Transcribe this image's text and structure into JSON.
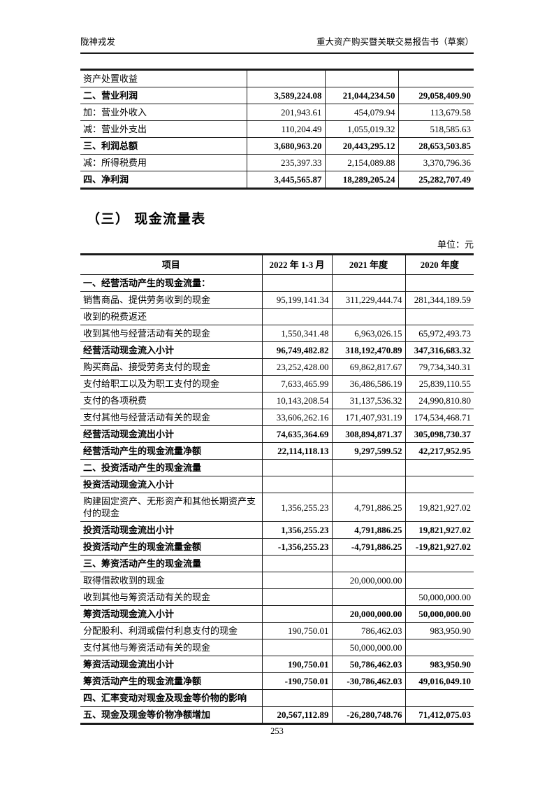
{
  "header": {
    "left": "陇神戎发",
    "right": "重大资产购买暨关联交易报告书（草案）"
  },
  "income_table": {
    "rows": [
      {
        "label": "资产处置收益",
        "v1": "",
        "v2": "",
        "v3": "",
        "bold": false
      },
      {
        "label": "二、营业利润",
        "v1": "3,589,224.08",
        "v2": "21,044,234.50",
        "v3": "29,058,409.90",
        "bold": true
      },
      {
        "label": "加：营业外收入",
        "v1": "201,943.61",
        "v2": "454,079.94",
        "v3": "113,679.58",
        "bold": false
      },
      {
        "label": "减：营业外支出",
        "v1": "110,204.49",
        "v2": "1,055,019.32",
        "v3": "518,585.63",
        "bold": false
      },
      {
        "label": "三、利润总额",
        "v1": "3,680,963.20",
        "v2": "20,443,295.12",
        "v3": "28,653,503.85",
        "bold": true
      },
      {
        "label": "减：所得税费用",
        "v1": "235,397.33",
        "v2": "2,154,089.88",
        "v3": "3,370,796.36",
        "bold": false
      },
      {
        "label": "四、净利润",
        "v1": "3,445,565.87",
        "v2": "18,289,205.24",
        "v3": "25,282,707.49",
        "bold": true
      }
    ]
  },
  "section": {
    "heading": "（三） 现金流量表",
    "unit": "单位：元"
  },
  "cashflow_table": {
    "headers": [
      "项目",
      "2022 年 1-3 月",
      "2021 年度",
      "2020 年度"
    ],
    "rows": [
      {
        "label": "一、经营活动产生的现金流量：",
        "v1": "",
        "v2": "",
        "v3": "",
        "bold": true
      },
      {
        "label": "销售商品、提供劳务收到的现金",
        "v1": "95,199,141.34",
        "v2": "311,229,444.74",
        "v3": "281,344,189.59",
        "bold": false
      },
      {
        "label": "收到的税费返还",
        "v1": "",
        "v2": "",
        "v3": "",
        "bold": false
      },
      {
        "label": "收到其他与经营活动有关的现金",
        "v1": "1,550,341.48",
        "v2": "6,963,026.15",
        "v3": "65,972,493.73",
        "bold": false
      },
      {
        "label": "经营活动现金流入小计",
        "v1": "96,749,482.82",
        "v2": "318,192,470.89",
        "v3": "347,316,683.32",
        "bold": true
      },
      {
        "label": "购买商品、接受劳务支付的现金",
        "v1": "23,252,428.00",
        "v2": "69,862,817.67",
        "v3": "79,734,340.31",
        "bold": false
      },
      {
        "label": "支付给职工以及为职工支付的现金",
        "v1": "7,633,465.99",
        "v2": "36,486,586.19",
        "v3": "25,839,110.55",
        "bold": false
      },
      {
        "label": "支付的各项税费",
        "v1": "10,143,208.54",
        "v2": "31,137,536.32",
        "v3": "24,990,810.80",
        "bold": false
      },
      {
        "label": "支付其他与经营活动有关的现金",
        "v1": "33,606,262.16",
        "v2": "171,407,931.19",
        "v3": "174,534,468.71",
        "bold": false
      },
      {
        "label": "经营活动现金流出小计",
        "v1": "74,635,364.69",
        "v2": "308,894,871.37",
        "v3": "305,098,730.37",
        "bold": true
      },
      {
        "label": "经营活动产生的现金流量净额",
        "v1": "22,114,118.13",
        "v2": "9,297,599.52",
        "v3": "42,217,952.95",
        "bold": true
      },
      {
        "label": "二、投资活动产生的现金流量",
        "v1": "",
        "v2": "",
        "v3": "",
        "bold": true
      },
      {
        "label": "投资活动现金流入小计",
        "v1": "",
        "v2": "",
        "v3": "",
        "bold": true
      },
      {
        "label": "购建固定资产、无形资产和其他长期资产支付的现金",
        "v1": "1,356,255.23",
        "v2": "4,791,886.25",
        "v3": "19,821,927.02",
        "bold": false
      },
      {
        "label": "投资活动现金流出小计",
        "v1": "1,356,255.23",
        "v2": "4,791,886.25",
        "v3": "19,821,927.02",
        "bold": true
      },
      {
        "label": "投资活动产生的现金流量金额",
        "v1": "-1,356,255.23",
        "v2": "-4,791,886.25",
        "v3": "-19,821,927.02",
        "bold": true
      },
      {
        "label": "三、筹资活动产生的现金流量",
        "v1": "",
        "v2": "",
        "v3": "",
        "bold": true
      },
      {
        "label": "取得借款收到的现金",
        "v1": "",
        "v2": "20,000,000.00",
        "v3": "",
        "bold": false
      },
      {
        "label": "收到其他与筹资活动有关的现金",
        "v1": "",
        "v2": "",
        "v3": "50,000,000.00",
        "bold": false
      },
      {
        "label": "筹资活动现金流入小计",
        "v1": "",
        "v2": "20,000,000.00",
        "v3": "50,000,000.00",
        "bold": true
      },
      {
        "label": "分配股利、利润或偿付利息支付的现金",
        "v1": "190,750.01",
        "v2": "786,462.03",
        "v3": "983,950.90",
        "bold": false
      },
      {
        "label": "支付其他与筹资活动有关的现金",
        "v1": "",
        "v2": "50,000,000.00",
        "v3": "",
        "bold": false
      },
      {
        "label": "筹资活动现金流出小计",
        "v1": "190,750.01",
        "v2": "50,786,462.03",
        "v3": "983,950.90",
        "bold": true
      },
      {
        "label": "筹资活动产生的现金流量净额",
        "v1": "-190,750.01",
        "v2": "-30,786,462.03",
        "v3": "49,016,049.10",
        "bold": true
      },
      {
        "label": "四、汇率变动对现金及现金等价物的影响",
        "v1": "",
        "v2": "",
        "v3": "",
        "bold": true
      },
      {
        "label": "五、现金及现金等价物净额增加",
        "v1": "20,567,112.89",
        "v2": "-26,280,748.76",
        "v3": "71,412,075.03",
        "bold": true
      }
    ]
  },
  "page_number": "253"
}
